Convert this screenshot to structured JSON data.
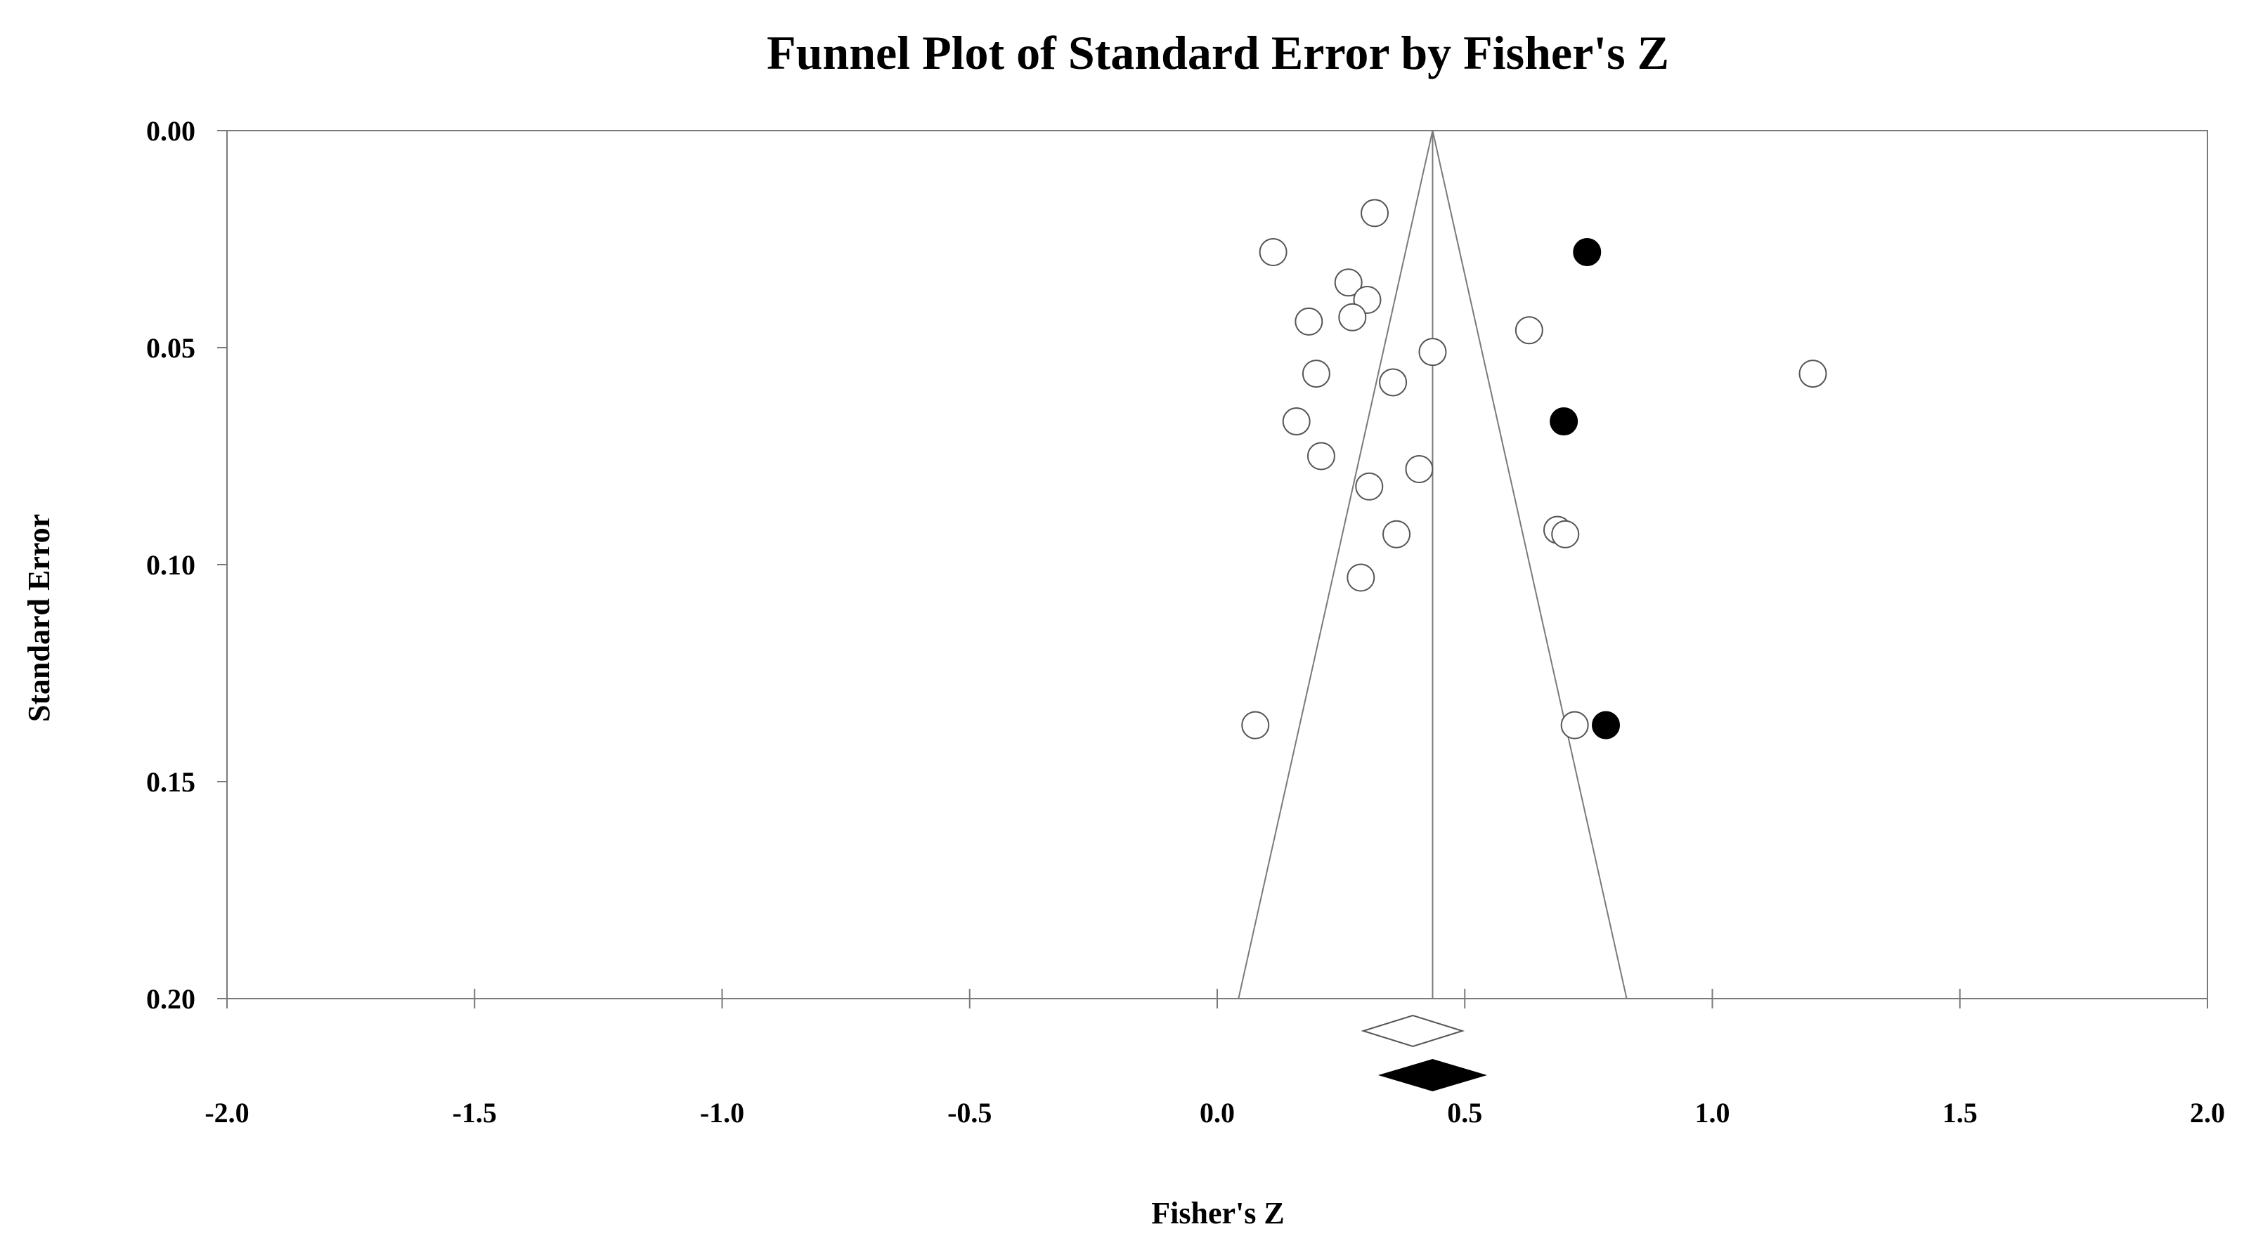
{
  "chart_data": {
    "type": "scatter",
    "title": "Funnel Plot of Standard Error by Fisher's Z",
    "xlabel": "Fisher's Z",
    "ylabel": "Standard Error",
    "xlim": [
      -2.0,
      2.0
    ],
    "ylim": [
      0.0,
      0.2
    ],
    "y_inverted": true,
    "xticks": [
      "-2.0",
      "-1.5",
      "-1.0",
      "-0.5",
      "0.0",
      "0.5",
      "1.0",
      "1.5",
      "2.0"
    ],
    "xtick_values": [
      -2.0,
      -1.5,
      -1.0,
      -0.5,
      0.0,
      0.5,
      1.0,
      1.5,
      2.0
    ],
    "yticks": [
      "0.00",
      "0.05",
      "0.10",
      "0.15",
      "0.20"
    ],
    "ytick_values": [
      0.0,
      0.05,
      0.1,
      0.15,
      0.2
    ],
    "grid": false,
    "pooled_effect": 0.435,
    "funnel_bottom_se": 0.2,
    "funnel_bottom_x": [
      0.043,
      0.827
    ],
    "series": [
      {
        "marker": "open-circle",
        "color": "#ffffff",
        "x": [
          0.318,
          0.113,
          0.265,
          0.303,
          0.185,
          0.273,
          0.435,
          0.63,
          0.2,
          0.355,
          0.16,
          0.21,
          0.408,
          0.307,
          0.362,
          0.687,
          0.703,
          0.29,
          0.077,
          0.722,
          1.203
        ],
        "y": [
          0.019,
          0.028,
          0.035,
          0.039,
          0.044,
          0.043,
          0.051,
          0.046,
          0.056,
          0.058,
          0.067,
          0.075,
          0.078,
          0.082,
          0.093,
          0.092,
          0.093,
          0.103,
          0.137,
          0.137,
          0.056
        ]
      },
      {
        "marker": "filled-circle",
        "color": "#000000",
        "x": [
          0.747,
          0.7,
          0.785
        ],
        "y": [
          0.028,
          0.067,
          0.137
        ]
      }
    ],
    "summary_diamonds": [
      {
        "style": "open",
        "center": 0.395,
        "lower": 0.295,
        "upper": 0.495
      },
      {
        "style": "filled",
        "center": 0.435,
        "lower": 0.33,
        "upper": 0.54
      }
    ]
  }
}
